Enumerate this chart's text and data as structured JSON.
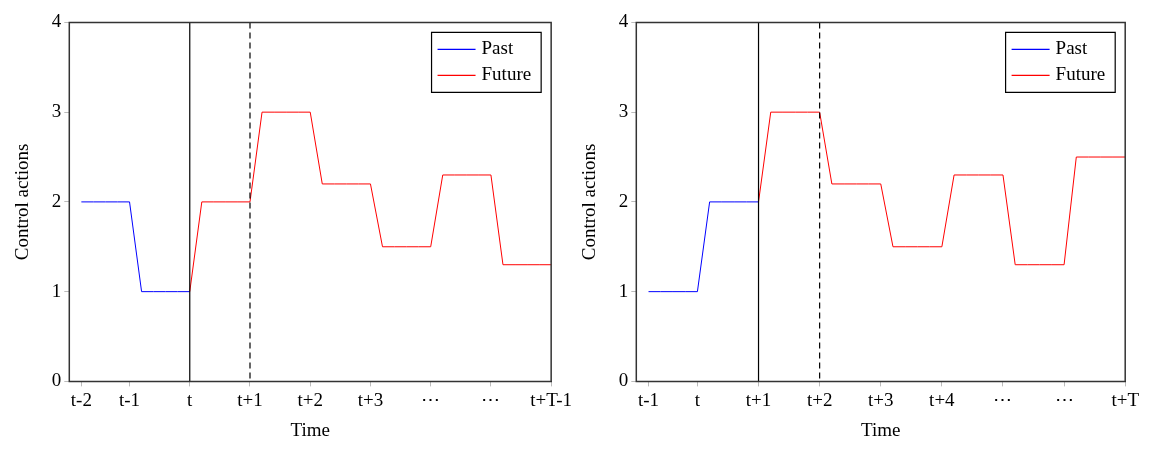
{
  "chart_data": [
    {
      "type": "line",
      "xlabel": "Time",
      "ylabel": "Control actions",
      "categories": [
        null,
        "t-2",
        null,
        null,
        null,
        "t-1",
        null,
        null,
        null,
        null,
        "t",
        null,
        null,
        null,
        null,
        "t+1",
        null,
        null,
        null,
        null,
        "t+2",
        null,
        null,
        null,
        null,
        "t+3",
        null,
        null,
        null,
        null,
        "⋯",
        null,
        null,
        null,
        null,
        "⋯",
        null,
        null,
        null,
        null,
        "t+T-1"
      ],
      "ylim": [
        0,
        4
      ],
      "yticks": [
        0,
        1,
        2,
        3,
        4
      ],
      "grid": false,
      "legend": "top right",
      "marker": "none",
      "series": [
        {
          "name": "Past",
          "color": "#0000ff",
          "values": [
            null,
            2,
            2,
            2,
            2,
            2,
            1,
            1,
            1,
            1,
            1,
            null,
            null,
            null,
            null,
            null,
            null,
            null,
            null,
            null,
            null,
            null,
            null,
            null,
            null,
            null,
            null,
            null,
            null,
            null,
            null,
            null,
            null,
            null,
            null,
            null,
            null,
            null,
            null,
            null,
            null
          ]
        },
        {
          "name": "Future",
          "color": "#ff0000",
          "values": [
            null,
            null,
            null,
            null,
            null,
            null,
            null,
            null,
            null,
            null,
            1,
            2,
            2,
            2,
            2,
            2,
            3,
            3,
            3,
            3,
            3,
            2.2,
            2.2,
            2.2,
            2.2,
            2.2,
            1.5,
            1.5,
            1.5,
            1.5,
            1.5,
            2.3,
            2.3,
            2.3,
            2.3,
            2.3,
            1.3,
            1.3,
            1.3,
            1.3,
            1.3
          ]
        }
      ],
      "ref_lines": [
        {
          "axis": "x",
          "value": "t",
          "color": "#000000",
          "line_style": "solid"
        },
        {
          "axis": "x",
          "value": "t+1",
          "color": "#000000",
          "line_style": "dashed"
        }
      ]
    },
    {
      "type": "line",
      "xlabel": "Time",
      "ylabel": "Control actions",
      "categories": [
        null,
        "t-1",
        null,
        null,
        null,
        "t",
        null,
        null,
        null,
        null,
        "t+1",
        null,
        null,
        null,
        null,
        "t+2",
        null,
        null,
        null,
        null,
        "t+3",
        null,
        null,
        null,
        null,
        "t+4",
        null,
        null,
        null,
        null,
        "⋯",
        null,
        null,
        null,
        null,
        "⋯",
        null,
        null,
        null,
        null,
        "t+T"
      ],
      "ylim": [
        0,
        4
      ],
      "yticks": [
        0,
        1,
        2,
        3,
        4
      ],
      "grid": false,
      "legend": "top right",
      "marker": "none",
      "series": [
        {
          "name": "Past",
          "color": "#0000ff",
          "values": [
            null,
            1,
            1,
            1,
            1,
            1,
            2,
            2,
            2,
            2,
            2,
            null,
            null,
            null,
            null,
            null,
            null,
            null,
            null,
            null,
            null,
            null,
            null,
            null,
            null,
            null,
            null,
            null,
            null,
            null,
            null,
            null,
            null,
            null,
            null,
            null,
            null,
            null,
            null,
            null,
            null
          ]
        },
        {
          "name": "Future",
          "color": "#ff0000",
          "values": [
            null,
            null,
            null,
            null,
            null,
            null,
            null,
            null,
            null,
            null,
            2,
            3,
            3,
            3,
            3,
            3,
            2.2,
            2.2,
            2.2,
            2.2,
            2.2,
            1.5,
            1.5,
            1.5,
            1.5,
            1.5,
            2.3,
            2.3,
            2.3,
            2.3,
            2.3,
            1.3,
            1.3,
            1.3,
            1.3,
            1.3,
            2.5,
            2.5,
            2.5,
            2.5,
            2.5
          ]
        }
      ],
      "ref_lines": [
        {
          "axis": "x",
          "value": "t+1",
          "color": "#000000",
          "line_style": "solid"
        },
        {
          "axis": "x",
          "value": "t+2",
          "color": "#000000",
          "line_style": "dashed"
        }
      ]
    }
  ]
}
